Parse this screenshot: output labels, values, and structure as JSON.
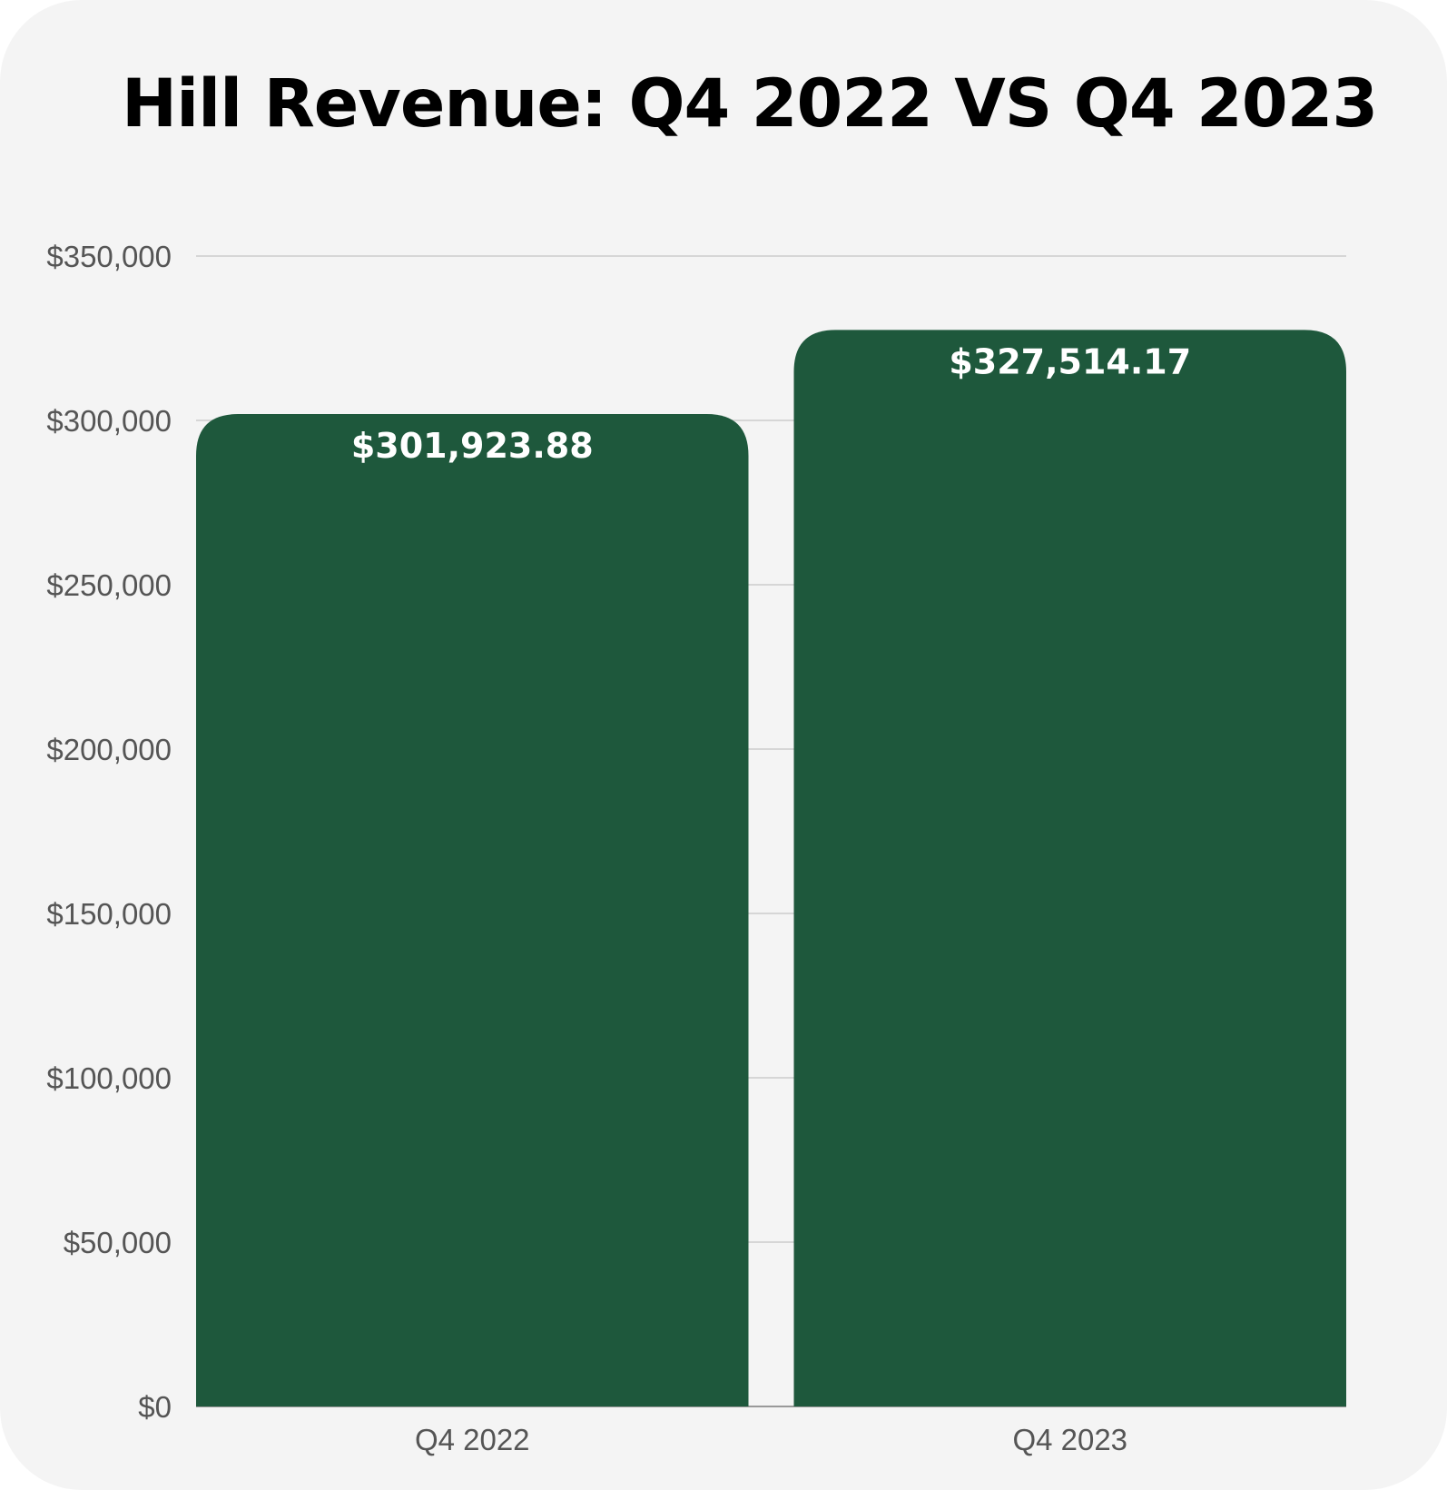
{
  "chart_data": {
    "type": "bar",
    "title": "Hill Revenue: Q4 2022 VS Q4 2023",
    "categories": [
      "Q4 2022",
      "Q4 2023"
    ],
    "values": [
      301923.88,
      327514.17
    ],
    "value_labels": [
      "$301,923.88",
      "$327,514.17"
    ],
    "ylim": [
      0,
      350000
    ],
    "yticks": [
      0,
      50000,
      100000,
      150000,
      200000,
      250000,
      300000,
      350000
    ],
    "ytick_labels": [
      "$0",
      "$50,000",
      "$100,000",
      "$150,000",
      "$200,000",
      "$250,000",
      "$300,000",
      "$350,000"
    ],
    "xlabel": "",
    "ylabel": "",
    "grid": true,
    "legend": "none",
    "colors": {
      "bar": "#1e583c",
      "background": "#f4f4f4",
      "grid": "#cccccc",
      "tick_text": "#555555",
      "title_text": "#000000",
      "data_label_text": "#ffffff"
    }
  }
}
